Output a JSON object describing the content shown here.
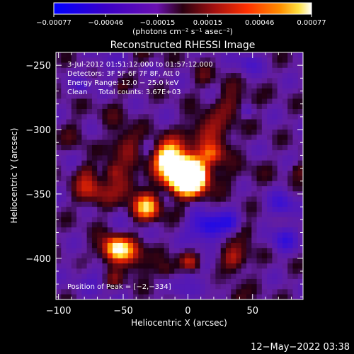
{
  "chart_data": {
    "type": "heatmap",
    "title": "Reconstructed RHESSI Image",
    "xlabel": "Heliocentric X (arcsec)",
    "ylabel": "Heliocentric Y (arcsec)",
    "xlim": [
      -102,
      89
    ],
    "ylim": [
      -432,
      -240
    ],
    "x_ticks": [
      -100,
      -50,
      0,
      50
    ],
    "y_ticks": [
      -250,
      -300,
      -350,
      -400
    ],
    "x_tick_labels": [
      "−100",
      "−50",
      "0",
      "50"
    ],
    "y_tick_labels": [
      "−250",
      "−300",
      "−350",
      "−400"
    ],
    "annotations": [
      "3-Jul-2012 01:51:12.000 to 01:57:12.000",
      "Detectors: 3F 5F 6F 7F 8F, Att 0",
      "Energy Range: 12.0 − 25.0 keV",
      "Clean     Total counts: 3.67E+03"
    ],
    "peak_label": "Position of Peak = [−2,−334]",
    "peak": {
      "x": -2,
      "y": -334
    },
    "colorbar": {
      "min": -0.00077,
      "max": 0.00077,
      "tick_values": [
        -0.00077,
        -0.00046,
        -0.00015,
        0.00015,
        0.00046,
        0.00077
      ],
      "tick_labels": [
        "−0.00077",
        "−0.00046",
        "−0.00015",
        "0.00015",
        "0.00046",
        "0.00077"
      ],
      "units_label": "(photons cm⁻² s⁻¹ asec⁻²)"
    }
  },
  "footer": {
    "timestamp": "12−May−2022 03:38"
  },
  "colors": {
    "background": "#000000",
    "foreground": "#ffffff",
    "colormap": [
      "#0000ff",
      "#3a00c8",
      "#6a10b0",
      "#8a1020",
      "#e01000",
      "#ff8000",
      "#ffd000",
      "#ffffff"
    ]
  }
}
